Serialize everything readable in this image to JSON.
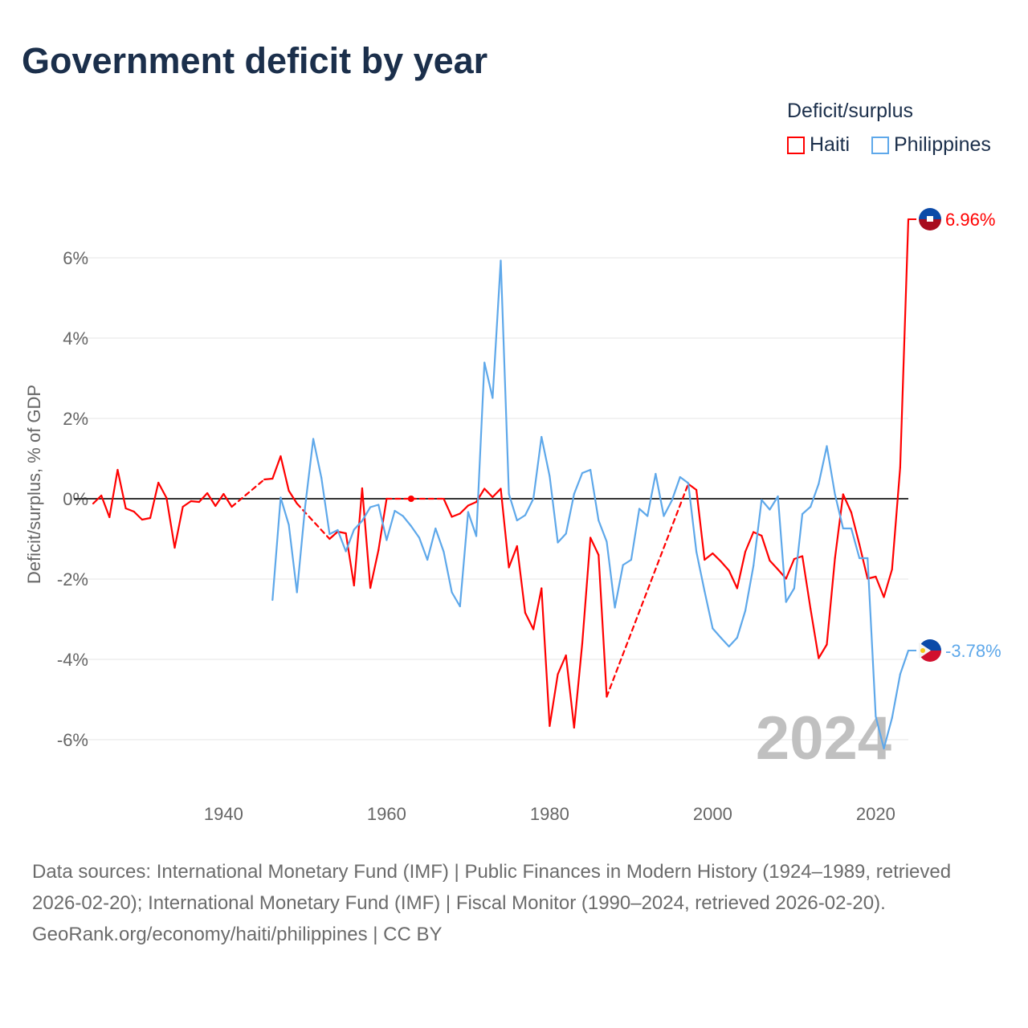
{
  "title": "Government deficit by year",
  "legend": {
    "title": "Deficit/surplus",
    "items": [
      {
        "label": "Haiti",
        "color": "#ff0000"
      },
      {
        "label": "Philippines",
        "color": "#5ea8ea"
      }
    ]
  },
  "footer": {
    "sources": "Data sources: International Monetary Fund (IMF) | Public Finances in Modern History (1924–1989, retrieved 2026-02-20); International Monetary Fund (IMF) | Fiscal Monitor (1990–2024, retrieved 2026-02-20).",
    "credit": "GeoRank.org/economy/haiti/philippines | CC BY"
  },
  "chart_data": {
    "type": "line",
    "title": "Government deficit by year",
    "ylabel": "Deficit/surplus, % of GDP",
    "xlabel": "",
    "ylim": [
      -7,
      7.5
    ],
    "xlim": [
      1924,
      2024
    ],
    "yticks": [
      {
        "v": 6,
        "label": "6%"
      },
      {
        "v": 4,
        "label": "4%"
      },
      {
        "v": 2,
        "label": "2%"
      },
      {
        "v": 0,
        "label": "0%"
      },
      {
        "v": -2,
        "label": "-2%"
      },
      {
        "v": -4,
        "label": "-4%"
      },
      {
        "v": -6,
        "label": "-6%"
      }
    ],
    "xticks": [
      {
        "v": 1940,
        "label": "1940"
      },
      {
        "v": 1960,
        "label": "1960"
      },
      {
        "v": 1980,
        "label": "1980"
      },
      {
        "v": 2000,
        "label": "2000"
      },
      {
        "v": 2020,
        "label": "2020"
      }
    ],
    "year_label": "2024",
    "series": [
      {
        "name": "Haiti",
        "color": "#ff0000",
        "end_label": "6.96%",
        "start": 1924,
        "values": [
          -0.12,
          0.08,
          -0.46,
          0.72,
          -0.24,
          -0.32,
          -0.52,
          -0.48,
          0.4,
          0.02,
          -1.22,
          -0.2,
          -0.06,
          -0.08,
          0.14,
          -0.18,
          0.12,
          -0.2,
          null,
          null,
          null,
          0.48,
          0.5,
          1.06,
          0.2,
          -0.12,
          null,
          null,
          null,
          -1.0,
          -0.82,
          -0.86,
          -2.16,
          0.26,
          -2.22,
          -1.28,
          0,
          null,
          null,
          0,
          null,
          null,
          null,
          0,
          -0.45,
          -0.37,
          -0.17,
          -0.08,
          0.25,
          0.04,
          0.25,
          -1.71,
          -1.18,
          -2.84,
          -3.25,
          -2.23,
          -5.66,
          -4.37,
          -3.9,
          -5.7,
          -3.6,
          -0.97,
          -1.4,
          -4.93,
          null,
          null,
          null,
          null,
          null,
          null,
          null,
          null,
          null,
          0.37,
          0.22,
          -1.52,
          -1.36,
          -1.56,
          -1.79,
          -2.23,
          -1.32,
          -0.83,
          -0.92,
          -1.54,
          -1.76,
          -1.99,
          -1.5,
          -1.43,
          -2.74,
          -3.97,
          -3.63,
          -1.48,
          0.11,
          -0.34,
          -1.14,
          -1.99,
          -1.94,
          -2.45,
          -1.76,
          0.78,
          6.96
        ]
      },
      {
        "name": "Philippines",
        "color": "#5ea8ea",
        "end_label": "-3.78%",
        "start": 1946,
        "values": [
          -2.52,
          0.03,
          -0.65,
          -2.33,
          -0.2,
          1.49,
          0.52,
          -0.88,
          -0.78,
          -1.31,
          -0.77,
          -0.55,
          -0.21,
          -0.15,
          -1.03,
          -0.3,
          -0.43,
          -0.68,
          -0.97,
          -1.52,
          -0.74,
          -1.32,
          -2.33,
          -2.68,
          -0.33,
          -0.93,
          3.39,
          2.51,
          5.93,
          0.12,
          -0.54,
          -0.41,
          0,
          1.54,
          0.56,
          -1.09,
          -0.87,
          0.12,
          0.64,
          0.72,
          -0.54,
          -1.07,
          -2.71,
          -1.65,
          -1.52,
          -0.25,
          -0.43,
          0.62,
          -0.43,
          -0.04,
          0.54,
          0.39,
          -1.32,
          -2.3,
          -3.23,
          -3.46,
          -3.68,
          -3.46,
          -2.79,
          -1.67,
          -0.03,
          -0.27,
          0.06,
          -2.57,
          -2.23,
          -0.38,
          -0.2,
          0.37,
          1.31,
          0.11,
          -0.74,
          -0.74,
          -1.48,
          -1.48,
          -5.42,
          -6.22,
          -5.46,
          -4.37,
          -3.78
        ]
      }
    ]
  }
}
